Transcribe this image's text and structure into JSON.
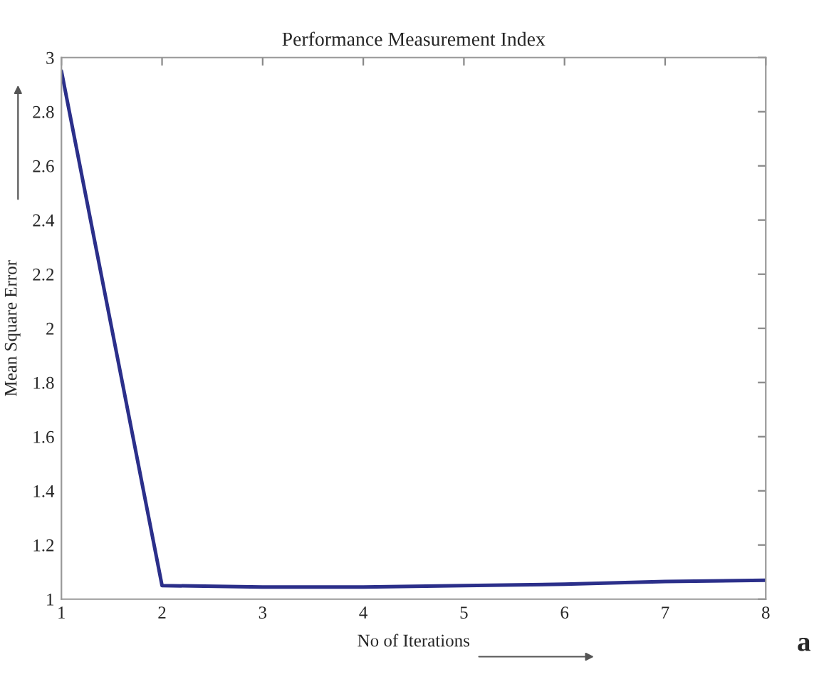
{
  "chart_data": {
    "type": "line",
    "title": "Performance Measurement Index",
    "xlabel": "No of Iterations",
    "ylabel": "Mean Square Error",
    "x": [
      1,
      2,
      3,
      4,
      5,
      6,
      7,
      8
    ],
    "series": [
      {
        "color": "#2b2f8a",
        "values": [
          2.95,
          1.05,
          1.045,
          1.045,
          1.05,
          1.055,
          1.065,
          1.07
        ]
      }
    ],
    "xlim": [
      1,
      8
    ],
    "xticks": [
      1,
      2,
      3,
      4,
      5,
      6,
      7,
      8
    ],
    "ylim": [
      1,
      3
    ],
    "yticks": [
      1,
      1.2,
      1.4,
      1.6,
      1.8,
      2,
      2.2,
      2.4,
      2.6,
      2.8,
      3
    ],
    "grid": false,
    "line_style": "solid",
    "annotations": [
      "a"
    ]
  }
}
